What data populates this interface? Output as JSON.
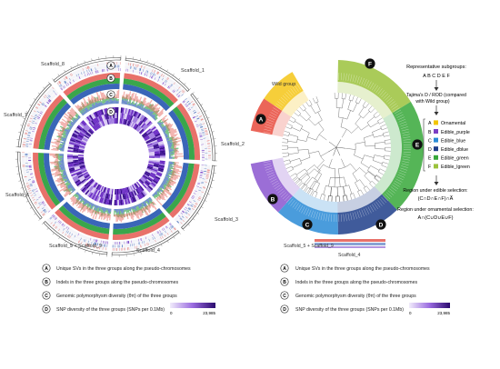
{
  "left_panel": {
    "scaffolds": [
      {
        "name": "Scaffold_1"
      },
      {
        "name": "Scaffold_2"
      },
      {
        "name": "Scaffold_3"
      },
      {
        "name": "Scaffold_4"
      },
      {
        "name": "Scaffold_5 + Scaffold_9"
      },
      {
        "name": "Scaffold_6"
      },
      {
        "name": "Scaffold_7"
      },
      {
        "name": "Scaffold_8"
      }
    ],
    "track_badges": [
      "A",
      "B",
      "C",
      "D"
    ],
    "legend": [
      {
        "badge": "A",
        "text": "Unique SVs in the three groups along the pseudo-chromosomes"
      },
      {
        "badge": "B",
        "text": "Indels in the three groups along the pseudo-chromosomes"
      },
      {
        "badge": "C",
        "text": "Genomic polymorphysm diversity (θπ) of the three groups"
      },
      {
        "badge": "D",
        "text": "SNP diversity of the three groups (SNPs per 0.1Mb)"
      }
    ],
    "scale_min": "0",
    "scale_max": "23,985"
  },
  "right_panel": {
    "wild_group_label": "Wild group",
    "clade_badges": [
      "A",
      "B",
      "C",
      "D",
      "E",
      "F"
    ],
    "scaffold_label": "Scaffold_5 + Scaffold_9",
    "scaffold4_label": "Scaffold_4",
    "rep_subgroups_title": "Representative subgroups:",
    "rep_subgroups_letters": "A  B  C  D  E  F",
    "tajima_text": "Tajima's D  /  ROD (compared with Wild group)",
    "subgroup_legend": [
      {
        "letter": "A",
        "name": "Ornamental",
        "color": "#f2c500"
      },
      {
        "letter": "B",
        "name": "Edible_purple",
        "color": "#7b3fc4"
      },
      {
        "letter": "C",
        "name": "Edible_blue",
        "color": "#2a8bd6"
      },
      {
        "letter": "D",
        "name": "Edible_dblue",
        "color": "#1f3e8a"
      },
      {
        "letter": "E",
        "name": "Edible_green",
        "color": "#37a83a"
      },
      {
        "letter": "F",
        "name": "Edible_lgreen",
        "color": "#9bc23c"
      }
    ],
    "edible_selection_title": "Region under edible selection:",
    "edible_selection_formula": "(C∩D∩E∩F)∩A̅",
    "ornamental_selection_title": "Region under ornamental selection:",
    "ornamental_selection_formula": "A∩(C∪D∪E∪F)",
    "legend": [
      {
        "badge": "A",
        "text": "Unique SVs in the three groups along the pseudo-chromosomes"
      },
      {
        "badge": "B",
        "text": "Indels in the three groups along the pseudo-chromosomes"
      },
      {
        "badge": "C",
        "text": "Genomic polymorphysm diversity (θπ) of the three groups"
      },
      {
        "badge": "D",
        "text": "SNP diversity of the three groups (SNPs per 0.1Mb)"
      }
    ],
    "scale_min": "0",
    "scale_max": "23,985"
  },
  "colors": {
    "red": "#e8716a",
    "green": "#3aa64b",
    "blue": "#3a66b8",
    "purple": "#6a2bc4",
    "lightpurple": "#b59be0"
  }
}
